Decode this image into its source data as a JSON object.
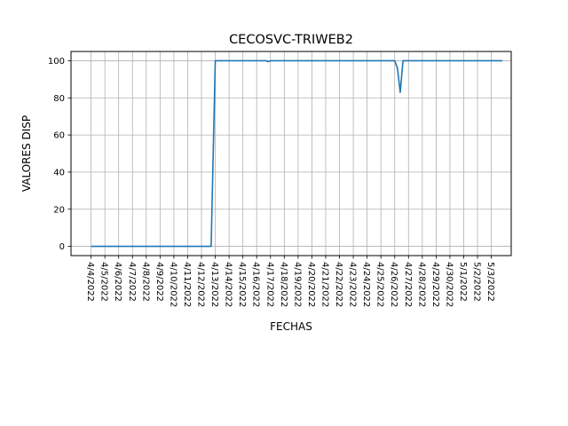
{
  "chart_data": {
    "type": "line",
    "title": "CECOSVC-TRIWEB2",
    "xlabel": "FECHAS",
    "ylabel": "VALORES DISP",
    "ylim": [
      -5,
      105
    ],
    "yticks": [
      0,
      20,
      40,
      60,
      80,
      100
    ],
    "grid": true,
    "line_color": "#1f77b4",
    "x_tick_labels": [
      "4/4/2022",
      "4/5/2022",
      "4/6/2022",
      "4/7/2022",
      "4/8/2022",
      "4/9/2022",
      "4/10/2022",
      "4/11/2022",
      "4/12/2022",
      "4/13/2022",
      "4/14/2022",
      "4/15/2022",
      "4/16/2022",
      "4/17/2022",
      "4/18/2022",
      "4/19/2022",
      "4/20/2022",
      "4/21/2022",
      "4/22/2022",
      "4/23/2022",
      "4/24/2022",
      "4/25/2022",
      "4/26/2022",
      "4/27/2022",
      "4/28/2022",
      "4/29/2022",
      "4/30/2022",
      "5/1/2022",
      "5/2/2022",
      "5/3/2022"
    ],
    "series": [
      {
        "x": [
          0,
          8.7,
          9.0,
          12.7,
          12.8,
          13.0,
          22.0,
          22.2,
          22.4,
          22.6,
          29.8
        ],
        "y": [
          0,
          0,
          100,
          100,
          99.5,
          100,
          100,
          96,
          83,
          100,
          100
        ]
      }
    ]
  }
}
